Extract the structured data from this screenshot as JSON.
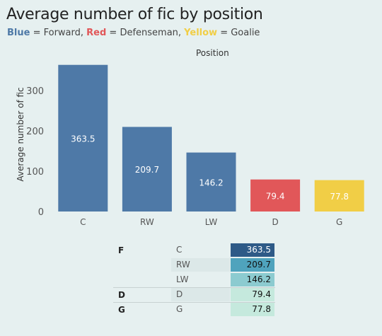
{
  "header": {
    "title": "Average number of fic by position",
    "legend": [
      {
        "word": "Blue",
        "rest": " = Forward, ",
        "color": "#4e79a7"
      },
      {
        "word": "Red",
        "rest": " = Defenseman, ",
        "color": "#e15759"
      },
      {
        "word": "Yellow",
        "rest": " = Goalie",
        "color": "#f1ce46"
      }
    ]
  },
  "chart_data": {
    "type": "bar",
    "title": "Average number of fic by position",
    "xlabel": "Position",
    "ylabel": "Average number of fic",
    "categories": [
      "C",
      "RW",
      "LW",
      "D",
      "G"
    ],
    "values": [
      363.5,
      209.7,
      146.2,
      79.4,
      77.8
    ],
    "colors": [
      "#4e79a7",
      "#4e79a7",
      "#4e79a7",
      "#e15759",
      "#f1ce46"
    ],
    "yticks": [
      0,
      100,
      200,
      300
    ],
    "ylim": [
      0,
      370
    ],
    "grid": false,
    "label_color": "#ffffff"
  },
  "table": {
    "rows": [
      {
        "group": "F",
        "position": "C",
        "value": "363.5",
        "bg": "#2e5a87",
        "text_color": "#ffffff",
        "pos_shade": false
      },
      {
        "group": "",
        "position": "RW",
        "value": "209.7",
        "bg": "#4fa3bd",
        "text_color": "#111111",
        "pos_shade": true
      },
      {
        "group": "",
        "position": "LW",
        "value": "146.2",
        "bg": "#8ccbd0",
        "text_color": "#111111",
        "pos_shade": false
      },
      {
        "group": "D",
        "position": "D",
        "value": "79.4",
        "bg": "#c5e9dd",
        "text_color": "#111111",
        "pos_shade": true
      },
      {
        "group": "G",
        "position": "G",
        "value": "77.8",
        "bg": "#c5e9dd",
        "text_color": "#111111",
        "pos_shade": false
      }
    ]
  }
}
